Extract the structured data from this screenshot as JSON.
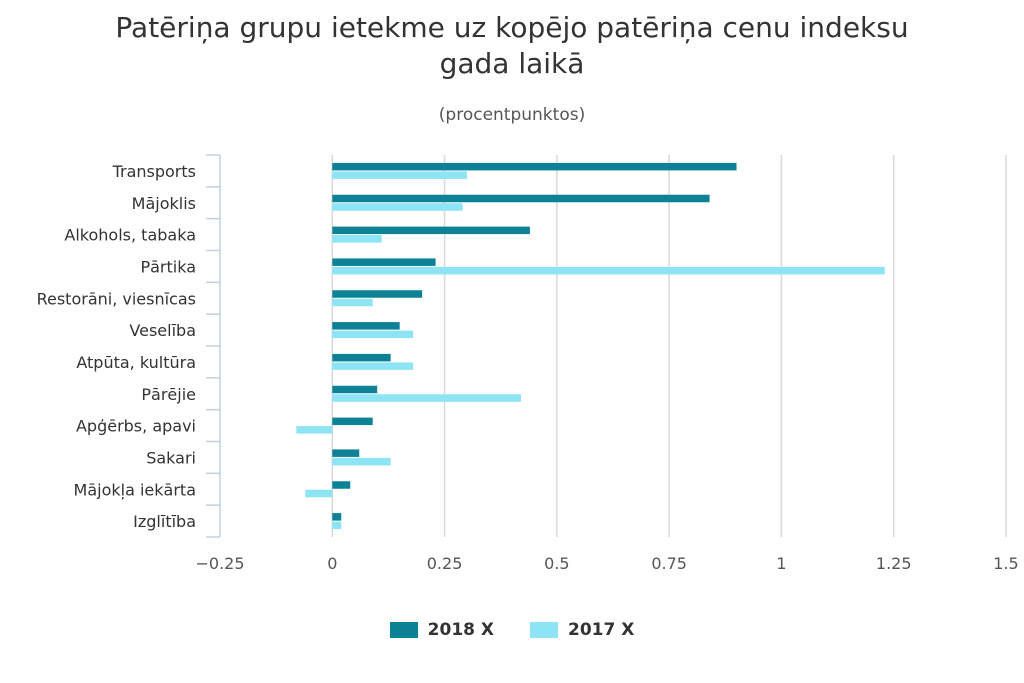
{
  "chart_data": {
    "type": "bar",
    "orientation": "horizontal",
    "title_lines": [
      "Patēriņa grupu ietekme uz kopējo patēriņa cenu indeksu",
      "gada laikā"
    ],
    "subtitle": "(procentpunktos)",
    "categories": [
      "Transports",
      "Mājoklis",
      "Alkohols, tabaka",
      "Pārtika",
      "Restorāni, viesnīcas",
      "Veselība",
      "Atpūta, kultūra",
      "Pārējie",
      "Apģērbs, apavi",
      "Sakari",
      "Mājokļa iekārta",
      "Izglītība"
    ],
    "series": [
      {
        "name": "2018 X",
        "color": "#0d8195",
        "values": [
          0.9,
          0.84,
          0.44,
          0.23,
          0.2,
          0.15,
          0.13,
          0.1,
          0.09,
          0.06,
          0.04,
          0.02
        ]
      },
      {
        "name": "2017 X",
        "color": "#8de4f4",
        "values": [
          0.3,
          0.29,
          0.11,
          1.23,
          0.09,
          0.18,
          0.18,
          0.42,
          -0.08,
          0.13,
          -0.06,
          0.02
        ]
      }
    ],
    "xlim": [
      -0.25,
      1.5
    ],
    "ticks": [
      -0.25,
      0,
      0.25,
      0.5,
      0.75,
      1,
      1.25,
      1.5
    ],
    "tick_labels": [
      "−0.25",
      "0",
      "0.25",
      "0.5",
      "0.75",
      "1",
      "1.25",
      "1.5"
    ],
    "grid": true,
    "legend_position": "bottom"
  }
}
